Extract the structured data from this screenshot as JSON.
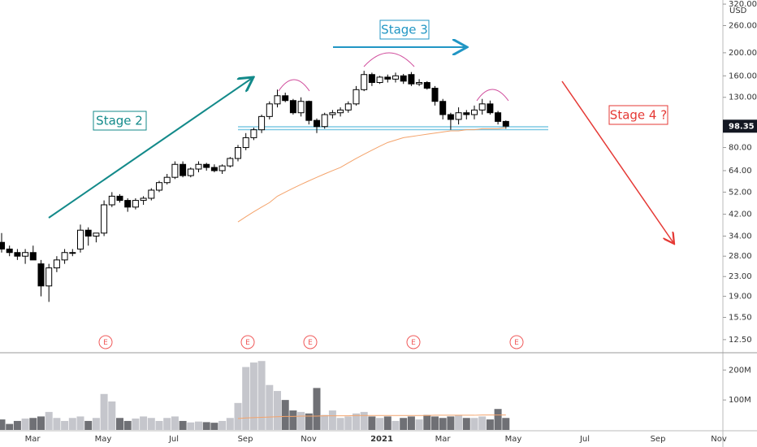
{
  "chart_data": {
    "type": "candlestick",
    "currency": "USD",
    "annotations": [
      "Stage 2",
      "Stage 3",
      "Stage 4 ?"
    ],
    "earnings_labels": [
      "E",
      "E",
      "E",
      "E",
      "E"
    ],
    "xticks": [
      "Mar",
      "May",
      "Jul",
      "Sep",
      "Nov",
      "2021",
      "Mar",
      "May",
      "Jul",
      "Sep",
      "Nov"
    ],
    "log_scale": true,
    "ylim": [
      11.1,
      333
    ],
    "yticks": [
      {
        "value": 12.5,
        "label": "12.50"
      },
      {
        "value": 15.5,
        "label": "15.50"
      },
      {
        "value": 19,
        "label": "19.00"
      },
      {
        "value": 23,
        "label": "23.00"
      },
      {
        "value": 28,
        "label": "28.00"
      },
      {
        "value": 34,
        "label": "34.00"
      },
      {
        "value": 42,
        "label": "42.00"
      },
      {
        "value": 52,
        "label": "52.00"
      },
      {
        "value": 64,
        "label": "64.00"
      },
      {
        "value": 80,
        "label": "80.00"
      },
      {
        "value": 130,
        "label": "130.00"
      },
      {
        "value": 160,
        "label": "160.00"
      },
      {
        "value": 200,
        "label": "200.00"
      },
      {
        "value": 260,
        "label": "260.00"
      },
      {
        "value": 320,
        "label": "320.00"
      }
    ],
    "open": [
      32,
      30,
      29,
      28,
      29,
      26,
      21,
      25,
      27,
      29,
      30,
      36,
      34,
      35,
      46,
      50,
      48,
      45,
      48,
      49,
      53,
      57,
      60,
      68,
      61,
      65,
      68,
      66,
      64,
      67,
      72,
      80,
      88,
      95,
      108,
      122,
      132,
      126,
      112,
      125,
      104,
      98,
      110,
      112,
      115,
      122,
      140,
      162,
      150,
      158,
      155,
      160,
      162,
      148,
      150,
      142,
      125,
      110,
      105,
      112,
      110,
      115,
      122,
      112,
      103
    ],
    "high": [
      35,
      31,
      30,
      30,
      31,
      27,
      26,
      28,
      30,
      30,
      38,
      37,
      35,
      48,
      52,
      51,
      49,
      49,
      50,
      54,
      58,
      62,
      70,
      70,
      66,
      70,
      69,
      68,
      68,
      73,
      82,
      92,
      97,
      110,
      125,
      140,
      136,
      128,
      130,
      126,
      106,
      112,
      115,
      118,
      125,
      145,
      168,
      165,
      160,
      162,
      165,
      163,
      166,
      155,
      152,
      145,
      128,
      112,
      118,
      115,
      120,
      128,
      126,
      114,
      104
    ],
    "low": [
      29,
      28,
      27,
      26,
      27,
      19,
      18,
      24,
      26,
      28,
      29,
      31,
      32,
      34,
      45,
      47,
      43,
      44,
      46,
      48,
      52,
      56,
      59,
      60,
      60,
      63,
      64,
      63,
      62,
      66,
      70,
      78,
      86,
      92,
      105,
      118,
      124,
      110,
      108,
      100,
      92,
      96,
      106,
      108,
      112,
      120,
      138,
      145,
      148,
      150,
      150,
      148,
      145,
      145,
      140,
      120,
      105,
      95,
      100,
      105,
      105,
      110,
      110,
      100,
      96
    ],
    "close": [
      30,
      29,
      28,
      29,
      27,
      21,
      25,
      27,
      29,
      29,
      36,
      34,
      35,
      46,
      50,
      48,
      45,
      48,
      49,
      53,
      57,
      60,
      68,
      61,
      65,
      68,
      66,
      64,
      67,
      72,
      80,
      88,
      95,
      108,
      122,
      132,
      126,
      112,
      125,
      104,
      98,
      110,
      112,
      115,
      122,
      140,
      162,
      150,
      158,
      155,
      160,
      152,
      148,
      150,
      142,
      125,
      110,
      105,
      112,
      110,
      115,
      122,
      112,
      103,
      98.35
    ],
    "ma": [
      null,
      null,
      null,
      null,
      null,
      null,
      null,
      null,
      null,
      null,
      null,
      null,
      null,
      null,
      null,
      null,
      null,
      null,
      null,
      null,
      null,
      null,
      null,
      null,
      null,
      null,
      null,
      null,
      null,
      null,
      39,
      41,
      43,
      45,
      47,
      50,
      52,
      54,
      56,
      58,
      60,
      62,
      64,
      66,
      69,
      72,
      75,
      78,
      81,
      84,
      86,
      88,
      89,
      90,
      91,
      92,
      93,
      94,
      94,
      95,
      95,
      96,
      96,
      96,
      97
    ],
    "ma_color": "#f4a36b",
    "volume": [
      35,
      20,
      30,
      38,
      40,
      45,
      60,
      40,
      30,
      40,
      45,
      30,
      40,
      120,
      95,
      40,
      30,
      38,
      45,
      40,
      30,
      40,
      45,
      30,
      25,
      28,
      26,
      24,
      30,
      40,
      90,
      210,
      225,
      230,
      150,
      130,
      100,
      65,
      60,
      55,
      140,
      50,
      65,
      40,
      45,
      55,
      60,
      45,
      40,
      45,
      30,
      40,
      45,
      35,
      50,
      45,
      40,
      45,
      50,
      40,
      40,
      45,
      35,
      70,
      40
    ],
    "volume_ma": [
      null,
      null,
      null,
      null,
      null,
      null,
      null,
      null,
      null,
      null,
      null,
      null,
      null,
      null,
      null,
      null,
      null,
      null,
      null,
      null,
      null,
      null,
      null,
      null,
      null,
      null,
      null,
      null,
      null,
      null,
      38,
      40,
      41,
      42,
      43,
      44,
      45,
      45,
      46,
      46,
      46,
      47,
      47,
      47,
      47,
      48,
      48,
      48,
      48,
      48,
      48,
      48,
      48,
      48,
      48,
      49,
      49,
      49,
      49,
      49,
      49,
      50,
      50,
      50,
      50
    ],
    "y2lim": [
      0,
      255
    ],
    "y2ticks": [
      {
        "value": 100,
        "label": "100M"
      },
      {
        "value": 200,
        "label": "200M"
      }
    ]
  }
}
